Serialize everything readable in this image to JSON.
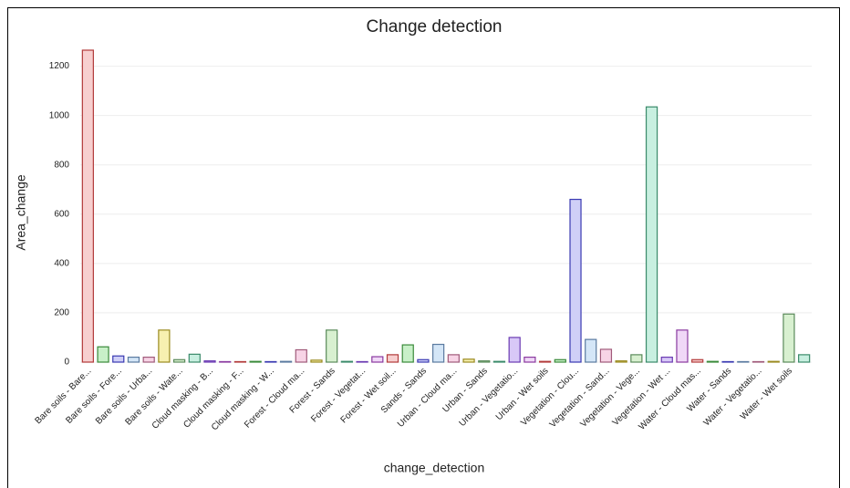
{
  "chart_data": {
    "type": "bar",
    "title": "Change detection",
    "x_label": "change_detection",
    "y_label": "Area_change",
    "categories": [
      "Bare soils - Bare...",
      null,
      "Bare soils - Fore...",
      null,
      "Bare soils - Urba...",
      null,
      "Bare soils - Wate...",
      null,
      "Cloud masking - B...",
      null,
      "Cloud masking - F...",
      null,
      "Cloud masking - W...",
      null,
      "Forest - Cloud ma...",
      null,
      "Forest - Sands",
      null,
      "Forest - Vegetat...",
      null,
      "Forest - Wet soil...",
      null,
      "Sands - Sands",
      null,
      "Urban - Cloud ma...",
      null,
      "Urban - Sands",
      null,
      "Urban - Vegetatio...",
      null,
      "Urban - Wet soils",
      null,
      "Vegetation - Clou...",
      null,
      "Vegetation - Sand...",
      null,
      "Vegetation - Vege...",
      null,
      "Vegetation - Wet ...",
      null,
      "Water - Cloud mas...",
      null,
      "Water - Sands",
      null,
      "Water - Vegetatio...",
      null,
      "Water - Wet soils",
      null
    ],
    "values": [
      1265,
      62,
      25,
      20,
      20,
      130,
      10,
      32,
      5,
      2,
      2,
      3,
      2,
      3,
      50,
      8,
      130,
      3,
      2,
      22,
      30,
      70,
      10,
      72,
      30,
      12,
      5,
      3,
      100,
      20,
      3,
      10,
      660,
      92,
      52,
      5,
      30,
      1035,
      20,
      130,
      10,
      3,
      2,
      2,
      2,
      3,
      195,
      30
    ],
    "colors": [
      [
        "#f7cfcf",
        "#b23a3a"
      ],
      [
        "#c8f0c8",
        "#3a8a3a"
      ],
      [
        "#cfcff7",
        "#3a3ab2"
      ],
      [
        "#d4e6f7",
        "#5a7aa0"
      ],
      [
        "#f7d4e6",
        "#a05a7a"
      ],
      [
        "#f7f0b0",
        "#9a8a20"
      ],
      [
        "#d8f0d0",
        "#5a8a5a"
      ],
      [
        "#c8efe0",
        "#3a8a6a"
      ],
      [
        "#d8c8f7",
        "#6a3ab2"
      ],
      [
        "#f0d8f7",
        "#8a3aa0"
      ]
    ],
    "ylim": [
      0,
      1265
    ],
    "yticks": [
      0,
      200,
      400,
      600,
      800,
      1000,
      1200
    ],
    "grid": true
  }
}
